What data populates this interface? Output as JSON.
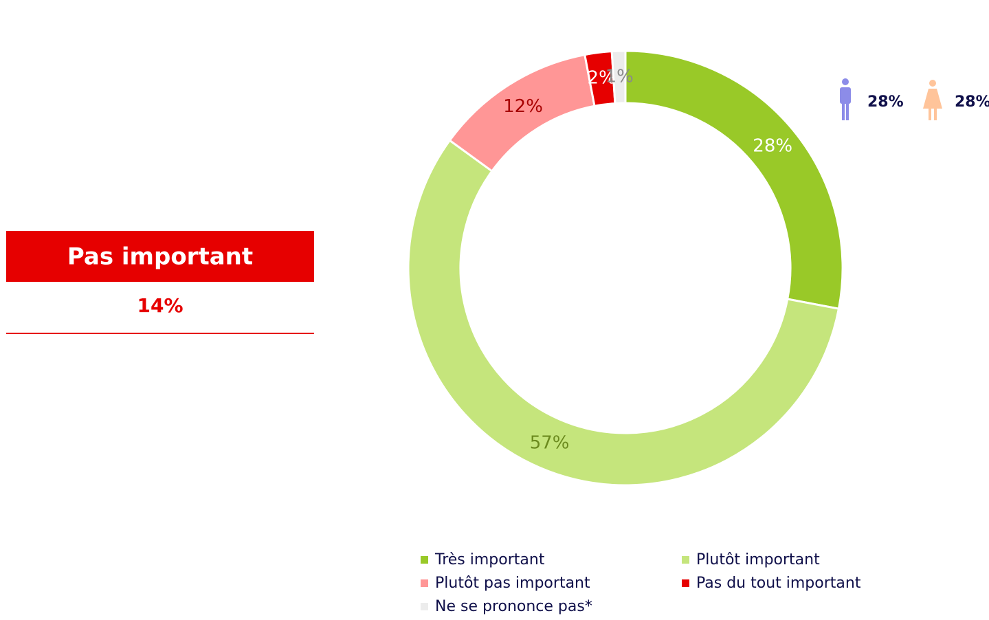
{
  "chart_data": {
    "type": "donut",
    "categories": [
      "Très important",
      "Plutôt important",
      "Plutôt pas important",
      "Pas du tout important",
      "Ne se prononce pas*"
    ],
    "values": [
      28,
      57,
      12,
      2,
      1
    ],
    "value_labels": [
      "28%",
      "57%",
      "12%",
      "2%",
      "1%"
    ],
    "colors": [
      "#99c928",
      "#c5e57c",
      "#ff9696",
      "#e60000",
      "#ececec"
    ],
    "label_colors": [
      "#ffffff",
      "#6b8a1e",
      "#a80000",
      "#ffffff",
      "#8a8a8a"
    ]
  },
  "summary": {
    "label": "Pas important",
    "value": 14,
    "value_label": "14%"
  },
  "gender": {
    "values": [
      28,
      28
    ],
    "value_labels": [
      "28%",
      "28%"
    ]
  }
}
